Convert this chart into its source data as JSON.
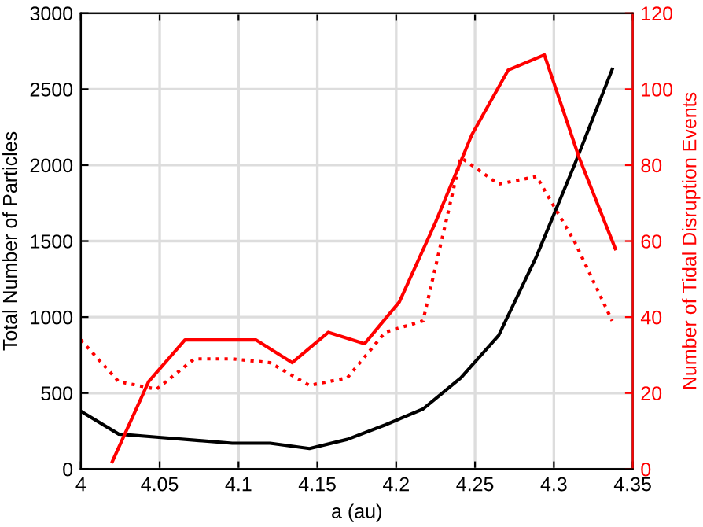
{
  "chart_data": {
    "type": "line",
    "xlabel": "a (au)",
    "ylabel": "Total Number of Particles",
    "y2label": "Number of Tidal Disruption Events",
    "xlim": [
      4,
      4.35
    ],
    "xticks": [
      4,
      4.05,
      4.1,
      4.15,
      4.2,
      4.25,
      4.3,
      4.35
    ],
    "ylim": [
      0,
      3000
    ],
    "yticks": [
      0,
      500,
      1000,
      1500,
      2000,
      2500,
      3000
    ],
    "y2lim": [
      0,
      120
    ],
    "y2ticks": [
      0,
      20,
      40,
      60,
      80,
      100,
      120
    ],
    "grid": true,
    "legend": false,
    "series": [
      {
        "color": "#000000",
        "line_style": "solid",
        "x": [
          4,
          4.024,
          4.048,
          4.072,
          4.096,
          4.12,
          4.145,
          4.169,
          4.193,
          4.217,
          4.241,
          4.265,
          4.289,
          4.313,
          4.337
        ],
        "values": [
          380,
          230,
          210,
          190,
          170,
          170,
          135,
          195,
          290,
          395,
          600,
          880,
          1400,
          2000,
          2630
        ]
      },
      {
        "color": "#ff0000",
        "line_style": "solid",
        "axis": "y2",
        "x": [
          4.02,
          4.043,
          4.066,
          4.089,
          4.111,
          4.134,
          4.157,
          4.18,
          4.202,
          4.225,
          4.248,
          4.271,
          4.294,
          4.316,
          4.339
        ],
        "values": [
          2,
          23,
          34,
          34,
          34,
          28,
          36,
          33,
          44,
          65,
          88,
          105,
          109,
          82,
          58
        ]
      },
      {
        "color": "#ff0000",
        "line_style": "dotted",
        "axis": "y2",
        "x": [
          4,
          4.024,
          4.048,
          4.072,
          4.096,
          4.12,
          4.145,
          4.169,
          4.193,
          4.217,
          4.241,
          4.265,
          4.289,
          4.313,
          4.337
        ],
        "values": [
          34,
          23,
          21,
          29,
          29,
          28,
          22,
          24,
          36,
          39,
          82,
          75,
          77,
          60,
          39
        ]
      }
    ]
  }
}
